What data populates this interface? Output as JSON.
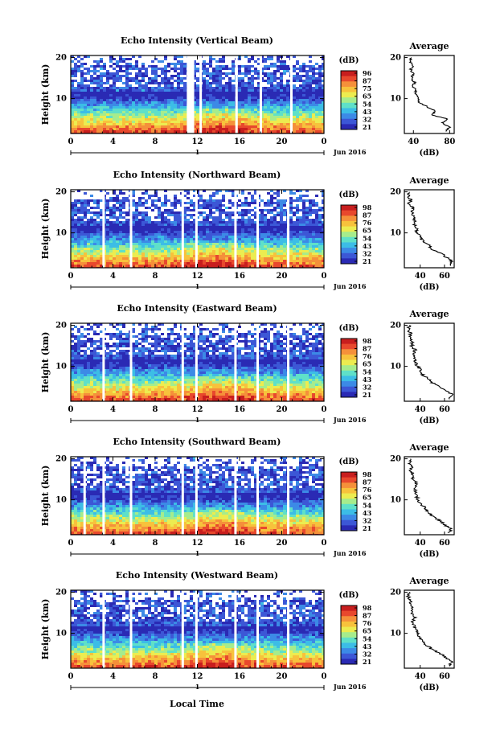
{
  "figure": {
    "xlabel_bottom": "Local Time",
    "date_label": "Jun 2016",
    "day_label": "1",
    "colorbar_unit": "(dB)",
    "avg_title": "Average",
    "avg_xlabel": "(dB)"
  },
  "colors": {
    "scale": [
      "#2a2ab4",
      "#3c57d6",
      "#3c8ae6",
      "#3cbde6",
      "#5fe0c8",
      "#a6ec8c",
      "#ecec50",
      "#f7c23c",
      "#f5903a",
      "#e8482d",
      "#c81e1e"
    ],
    "gap": "#ffffff",
    "axis": "#000000"
  },
  "chart_data": [
    {
      "type": "heatmap",
      "title": "Echo Intensity (Vertical Beam)",
      "ylabel": "Height (km)",
      "x_ticks": [
        "0",
        "4",
        "8",
        "12",
        "16",
        "20",
        "0"
      ],
      "xlim": [
        0,
        24
      ],
      "y_ticks": [
        "20",
        "10"
      ],
      "ylim": [
        1.5,
        20.5
      ],
      "colorbar_ticks": [
        "96",
        "87",
        "75",
        "65",
        "54",
        "43",
        "32",
        "21"
      ],
      "colorbar_range": [
        21,
        96
      ],
      "data_gaps_hours": [
        [
          11.0,
          11.7
        ],
        [
          12.2,
          12.4
        ],
        [
          15.6,
          15.8
        ],
        [
          17.9,
          18.1
        ],
        [
          20.8,
          20.9
        ]
      ],
      "average_profile": {
        "title": "Average",
        "xlabel": "(dB)",
        "x_ticks": [
          "40",
          "80"
        ],
        "xlim": [
          30,
          85
        ],
        "y_ticks": [
          "20",
          "10"
        ],
        "ylim": [
          1.5,
          20.5
        ],
        "height_km": [
          2,
          3,
          4,
          5,
          6,
          7,
          8,
          9,
          10,
          11,
          12,
          13,
          14,
          15,
          16,
          17,
          18,
          19,
          20
        ],
        "value_db": [
          75,
          80,
          72,
          78,
          60,
          65,
          55,
          47,
          45,
          43,
          42,
          40,
          41,
          38,
          40,
          37,
          39,
          36,
          38
        ]
      }
    },
    {
      "type": "heatmap",
      "title": "Echo Intensity (Northward Beam)",
      "ylabel": "Height (km)",
      "x_ticks": [
        "0",
        "4",
        "8",
        "12",
        "16",
        "20",
        "0"
      ],
      "xlim": [
        0,
        24
      ],
      "y_ticks": [
        "20",
        "10"
      ],
      "ylim": [
        1.5,
        20.5
      ],
      "colorbar_ticks": [
        "98",
        "87",
        "76",
        "65",
        "54",
        "43",
        "32",
        "21"
      ],
      "colorbar_range": [
        21,
        98
      ],
      "data_gaps_hours": [
        [
          3.0,
          3.2
        ],
        [
          5.6,
          5.8
        ],
        [
          10.5,
          10.7
        ],
        [
          11.8,
          12.0
        ],
        [
          15.5,
          15.7
        ],
        [
          17.6,
          17.8
        ],
        [
          20.5,
          20.7
        ]
      ],
      "average_profile": {
        "title": "Average",
        "xlabel": "(dB)",
        "x_ticks": [
          "40",
          "60"
        ],
        "xlim": [
          27,
          68
        ],
        "y_ticks": [
          "20",
          "10"
        ],
        "ylim": [
          1.5,
          20.5
        ],
        "height_km": [
          2,
          3,
          4,
          5,
          6,
          7,
          8,
          9,
          10,
          11,
          12,
          13,
          14,
          15,
          16,
          17,
          18,
          19,
          20
        ],
        "value_db": [
          64,
          66,
          62,
          58,
          50,
          47,
          42,
          40,
          38,
          37,
          35,
          36,
          34,
          33,
          34,
          31,
          32,
          30,
          31
        ]
      }
    },
    {
      "type": "heatmap",
      "title": "Echo Intensity (Eastward Beam)",
      "ylabel": "Height (km)",
      "x_ticks": [
        "0",
        "4",
        "8",
        "12",
        "16",
        "20",
        "0"
      ],
      "xlim": [
        0,
        24
      ],
      "y_ticks": [
        "20",
        "10"
      ],
      "ylim": [
        1.5,
        20.5
      ],
      "colorbar_ticks": [
        "98",
        "87",
        "76",
        "65",
        "54",
        "43",
        "32",
        "21"
      ],
      "colorbar_range": [
        21,
        98
      ],
      "data_gaps_hours": [
        [
          3.0,
          3.2
        ],
        [
          5.6,
          5.8
        ],
        [
          10.5,
          10.7
        ],
        [
          11.8,
          12.0
        ],
        [
          15.5,
          15.7
        ],
        [
          17.6,
          17.8
        ],
        [
          20.5,
          20.7
        ]
      ],
      "average_profile": {
        "title": "Average",
        "xlabel": "(dB)",
        "x_ticks": [
          "40",
          "60"
        ],
        "xlim": [
          27,
          68
        ],
        "y_ticks": [
          "20",
          "10"
        ],
        "ylim": [
          1.5,
          20.5
        ],
        "height_km": [
          2,
          3,
          4,
          5,
          6,
          7,
          8,
          9,
          10,
          11,
          12,
          13,
          14,
          15,
          16,
          17,
          18,
          19,
          20
        ],
        "value_db": [
          64,
          67,
          62,
          57,
          50,
          46,
          42,
          40,
          38,
          36,
          35,
          34,
          36,
          33,
          34,
          31,
          32,
          30,
          31
        ]
      }
    },
    {
      "type": "heatmap",
      "title": "Echo Intensity (Southward Beam)",
      "ylabel": "Height (km)",
      "x_ticks": [
        "0",
        "4",
        "8",
        "12",
        "16",
        "20",
        "0"
      ],
      "xlim": [
        0,
        24
      ],
      "y_ticks": [
        "20",
        "10"
      ],
      "ylim": [
        1.5,
        20.5
      ],
      "colorbar_ticks": [
        "98",
        "87",
        "76",
        "65",
        "54",
        "43",
        "32",
        "21"
      ],
      "colorbar_range": [
        21,
        98
      ],
      "data_gaps_hours": [
        [
          1.2,
          1.4
        ],
        [
          3.0,
          3.2
        ],
        [
          5.6,
          5.8
        ],
        [
          10.5,
          10.7
        ],
        [
          11.8,
          12.0
        ],
        [
          15.5,
          15.7
        ],
        [
          17.6,
          17.8
        ],
        [
          20.5,
          20.7
        ]
      ],
      "average_profile": {
        "title": "Average",
        "xlabel": "(dB)",
        "x_ticks": [
          "40",
          "60"
        ],
        "xlim": [
          27,
          68
        ],
        "y_ticks": [
          "20",
          "10"
        ],
        "ylim": [
          1.5,
          20.5
        ],
        "height_km": [
          2,
          3,
          4,
          5,
          6,
          7,
          8,
          9,
          10,
          11,
          12,
          13,
          14,
          15,
          16,
          17,
          18,
          19,
          20
        ],
        "value_db": [
          64,
          65,
          60,
          56,
          50,
          47,
          44,
          41,
          38,
          37,
          36,
          35,
          37,
          34,
          35,
          32,
          33,
          31,
          32
        ]
      }
    },
    {
      "type": "heatmap",
      "title": "Echo Intensity (Westward Beam)",
      "ylabel": "Height (km)",
      "x_ticks": [
        "0",
        "4",
        "8",
        "12",
        "16",
        "20",
        "0"
      ],
      "xlim": [
        0,
        24
      ],
      "y_ticks": [
        "20",
        "10"
      ],
      "ylim": [
        1.5,
        20.5
      ],
      "colorbar_ticks": [
        "98",
        "87",
        "76",
        "65",
        "54",
        "43",
        "32",
        "21"
      ],
      "colorbar_range": [
        21,
        98
      ],
      "data_gaps_hours": [
        [
          3.0,
          3.2
        ],
        [
          5.6,
          5.8
        ],
        [
          10.5,
          10.7
        ],
        [
          11.8,
          12.0
        ],
        [
          15.5,
          15.7
        ],
        [
          17.6,
          17.8
        ],
        [
          20.5,
          20.7
        ]
      ],
      "average_profile": {
        "title": "Average",
        "xlabel": "(dB)",
        "x_ticks": [
          "40",
          "60"
        ],
        "xlim": [
          27,
          68
        ],
        "y_ticks": [
          "20",
          "10"
        ],
        "ylim": [
          1.5,
          20.5
        ],
        "height_km": [
          2,
          3,
          4,
          5,
          6,
          7,
          8,
          9,
          10,
          11,
          12,
          13,
          14,
          15,
          16,
          17,
          18,
          19,
          20
        ],
        "value_db": [
          64,
          66,
          61,
          57,
          50,
          46,
          42,
          40,
          38,
          36,
          35,
          34,
          36,
          33,
          34,
          31,
          32,
          30,
          31
        ]
      }
    }
  ]
}
